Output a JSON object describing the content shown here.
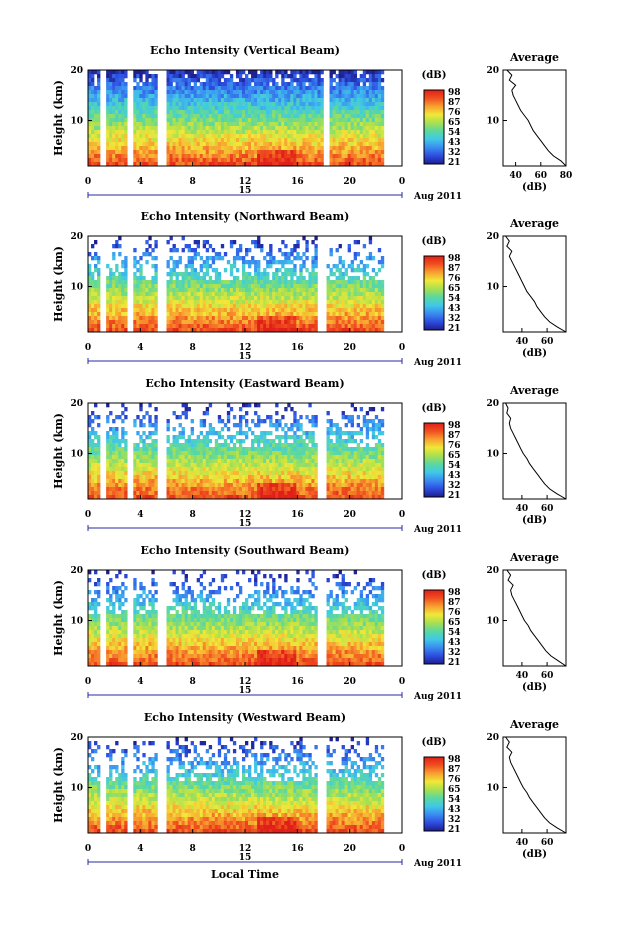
{
  "figure": {
    "x_axis_label": "Local Time",
    "date_label": "15",
    "month_label": "Aug 2011",
    "colorbar_unit": "(dB)",
    "average_title": "Average",
    "average_xlabel": "(dB)"
  },
  "colors": {
    "scale": [
      "#1e1e8c",
      "#2d4de0",
      "#3a8cf0",
      "#40c8e8",
      "#5ad8a0",
      "#a8e050",
      "#f0e838",
      "#f8a030",
      "#f05020",
      "#e02018"
    ]
  },
  "chart_data": [
    {
      "type": "heatmap",
      "title": "Echo Intensity (Vertical Beam)",
      "ylabel": "Height (km)",
      "xlabel": "Local Time",
      "x_ticks": [
        "0",
        "4",
        "8",
        "12",
        "16",
        "20",
        "0"
      ],
      "xlim": [
        0,
        24
      ],
      "y_ticks": [
        "20",
        "10"
      ],
      "ylim": [
        1,
        20
      ],
      "colorbar_ticks": [
        "98",
        "87",
        "76",
        "65",
        "54",
        "43",
        "32",
        "21"
      ],
      "colorbar_range": [
        21,
        98
      ],
      "gaps_hours": [
        [
          1.0,
          1.3
        ],
        [
          3.1,
          3.4
        ],
        [
          5.3,
          6.0
        ],
        [
          18.0,
          18.5
        ],
        [
          22.7,
          24.0
        ]
      ],
      "average_profile": {
        "x_ticks": [
          "40",
          "60",
          "80"
        ],
        "xlim": [
          30,
          80
        ],
        "height_km": [
          1,
          2,
          3,
          4,
          5,
          6,
          7,
          8,
          9,
          10,
          11,
          12,
          13,
          14,
          15,
          16,
          17,
          18,
          19,
          20
        ],
        "values_db": [
          80,
          76,
          70,
          66,
          63,
          60,
          57,
          54,
          52,
          50,
          47,
          44,
          42,
          40,
          38,
          37,
          40,
          35,
          37,
          33
        ]
      }
    },
    {
      "type": "heatmap",
      "title": "Echo Intensity (Northward Beam)",
      "ylabel": "Height (km)",
      "xlabel": "Local Time",
      "x_ticks": [
        "0",
        "4",
        "8",
        "12",
        "16",
        "20",
        "0"
      ],
      "xlim": [
        0,
        24
      ],
      "y_ticks": [
        "20",
        "10"
      ],
      "ylim": [
        1,
        20
      ],
      "colorbar_ticks": [
        "98",
        "87",
        "76",
        "65",
        "54",
        "43",
        "32",
        "21"
      ],
      "colorbar_range": [
        21,
        98
      ],
      "gaps_hours": [
        [
          1.0,
          1.3
        ],
        [
          3.1,
          3.4
        ],
        [
          5.3,
          6.0
        ],
        [
          17.6,
          18.2
        ],
        [
          22.7,
          24.0
        ]
      ],
      "average_profile": {
        "x_ticks": [
          "40",
          "60"
        ],
        "xlim": [
          25,
          75
        ],
        "height_km": [
          1,
          2,
          3,
          4,
          5,
          6,
          7,
          8,
          9,
          10,
          11,
          12,
          13,
          14,
          15,
          16,
          17,
          18,
          19,
          20
        ],
        "values_db": [
          75,
          68,
          62,
          58,
          55,
          52,
          50,
          47,
          44,
          42,
          40,
          38,
          36,
          34,
          32,
          30,
          32,
          28,
          30,
          27
        ]
      }
    },
    {
      "type": "heatmap",
      "title": "Echo Intensity (Eastward Beam)",
      "ylabel": "Height (km)",
      "xlabel": "Local Time",
      "x_ticks": [
        "0",
        "4",
        "8",
        "12",
        "16",
        "20",
        "0"
      ],
      "xlim": [
        0,
        24
      ],
      "y_ticks": [
        "20",
        "10"
      ],
      "ylim": [
        1,
        20
      ],
      "colorbar_ticks": [
        "98",
        "87",
        "76",
        "65",
        "54",
        "43",
        "32",
        "21"
      ],
      "colorbar_range": [
        21,
        98
      ],
      "gaps_hours": [
        [
          1.0,
          1.3
        ],
        [
          3.1,
          3.4
        ],
        [
          5.3,
          6.0
        ],
        [
          17.6,
          18.2
        ],
        [
          22.7,
          24.0
        ]
      ],
      "average_profile": {
        "x_ticks": [
          "40",
          "60"
        ],
        "xlim": [
          25,
          75
        ],
        "height_km": [
          1,
          2,
          3,
          4,
          5,
          6,
          7,
          8,
          9,
          10,
          11,
          12,
          13,
          14,
          15,
          16,
          17,
          18,
          19,
          20
        ],
        "values_db": [
          75,
          68,
          62,
          58,
          55,
          52,
          49,
          46,
          44,
          41,
          39,
          37,
          35,
          33,
          31,
          30,
          31,
          28,
          29,
          27
        ]
      }
    },
    {
      "type": "heatmap",
      "title": "Echo Intensity (Southward Beam)",
      "ylabel": "Height (km)",
      "xlabel": "Local Time",
      "x_ticks": [
        "0",
        "4",
        "8",
        "12",
        "16",
        "20",
        "0"
      ],
      "xlim": [
        0,
        24
      ],
      "y_ticks": [
        "20",
        "10"
      ],
      "ylim": [
        1,
        20
      ],
      "colorbar_ticks": [
        "98",
        "87",
        "76",
        "65",
        "54",
        "43",
        "32",
        "21"
      ],
      "colorbar_range": [
        21,
        98
      ],
      "gaps_hours": [
        [
          1.0,
          1.3
        ],
        [
          3.1,
          3.4
        ],
        [
          5.3,
          6.0
        ],
        [
          17.6,
          18.2
        ],
        [
          22.7,
          24.0
        ]
      ],
      "average_profile": {
        "x_ticks": [
          "40",
          "60"
        ],
        "xlim": [
          25,
          75
        ],
        "height_km": [
          1,
          2,
          3,
          4,
          5,
          6,
          7,
          8,
          9,
          10,
          11,
          12,
          13,
          14,
          15,
          16,
          17,
          18,
          19,
          20
        ],
        "values_db": [
          75,
          69,
          63,
          59,
          56,
          53,
          50,
          47,
          45,
          42,
          40,
          38,
          36,
          34,
          32,
          31,
          33,
          29,
          31,
          28
        ]
      }
    },
    {
      "type": "heatmap",
      "title": "Echo Intensity (Westward Beam)",
      "ylabel": "Height (km)",
      "xlabel": "Local Time",
      "x_ticks": [
        "0",
        "4",
        "8",
        "12",
        "16",
        "20",
        "0"
      ],
      "xlim": [
        0,
        24
      ],
      "y_ticks": [
        "20",
        "10"
      ],
      "ylim": [
        1,
        20
      ],
      "colorbar_ticks": [
        "98",
        "87",
        "76",
        "65",
        "54",
        "43",
        "32",
        "21"
      ],
      "colorbar_range": [
        21,
        98
      ],
      "gaps_hours": [
        [
          1.0,
          1.3
        ],
        [
          3.1,
          3.4
        ],
        [
          5.3,
          6.0
        ],
        [
          17.6,
          18.2
        ],
        [
          22.7,
          24.0
        ]
      ],
      "average_profile": {
        "x_ticks": [
          "40",
          "60"
        ],
        "xlim": [
          25,
          75
        ],
        "height_km": [
          1,
          2,
          3,
          4,
          5,
          6,
          7,
          8,
          9,
          10,
          11,
          12,
          13,
          14,
          15,
          16,
          17,
          18,
          19,
          20
        ],
        "values_db": [
          75,
          68,
          62,
          58,
          55,
          52,
          49,
          46,
          44,
          41,
          39,
          37,
          35,
          33,
          31,
          30,
          32,
          28,
          30,
          27
        ]
      }
    }
  ]
}
